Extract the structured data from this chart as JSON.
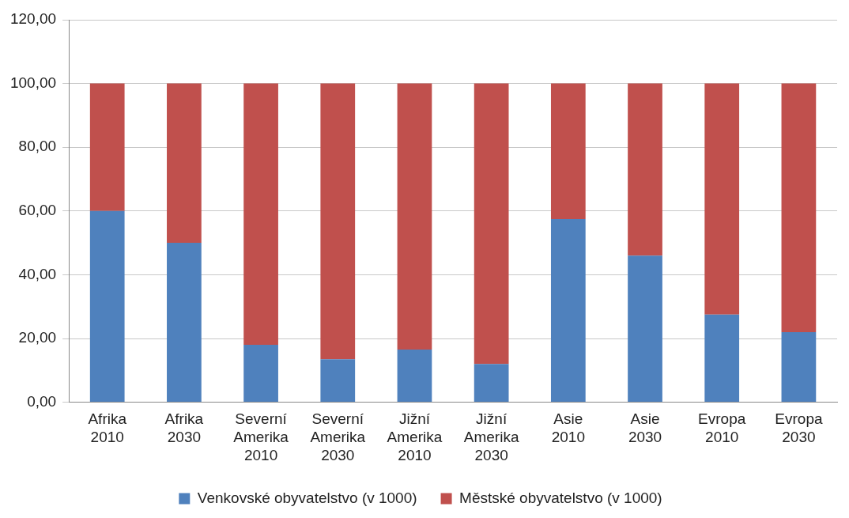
{
  "chart_data": {
    "type": "bar",
    "stacked": true,
    "categories": [
      "Afrika 2010",
      "Afrika 2030",
      "Severní Amerika 2010",
      "Severní Amerika 2030",
      "Jižní Amerika 2010",
      "Jižní Amerika 2030",
      "Asie 2010",
      "Asie 2030",
      "Evropa 2010",
      "Evropa 2030"
    ],
    "series": [
      {
        "name": "Venkovské obyvatelstvo (v 1000)",
        "color": "#4f81bd",
        "values": [
          60,
          50,
          18,
          13.5,
          16.5,
          12,
          57.5,
          46,
          27.5,
          22
        ]
      },
      {
        "name": "Městské obyvatelstvo (v 1000)",
        "color": "#c0504d",
        "values": [
          40,
          50,
          82,
          86.5,
          83.5,
          88,
          42.5,
          54,
          72.5,
          78
        ]
      }
    ],
    "ylim": [
      0,
      120
    ],
    "yticks": [
      {
        "value": 0,
        "label": "0,00"
      },
      {
        "value": 20,
        "label": "20,00"
      },
      {
        "value": 40,
        "label": "40,00"
      },
      {
        "value": 60,
        "label": "60,00"
      },
      {
        "value": 80,
        "label": "80,00"
      },
      {
        "value": 100,
        "label": "100,00"
      },
      {
        "value": 120,
        "label": "120,00"
      }
    ],
    "grid": "y",
    "legend": "bottom"
  }
}
